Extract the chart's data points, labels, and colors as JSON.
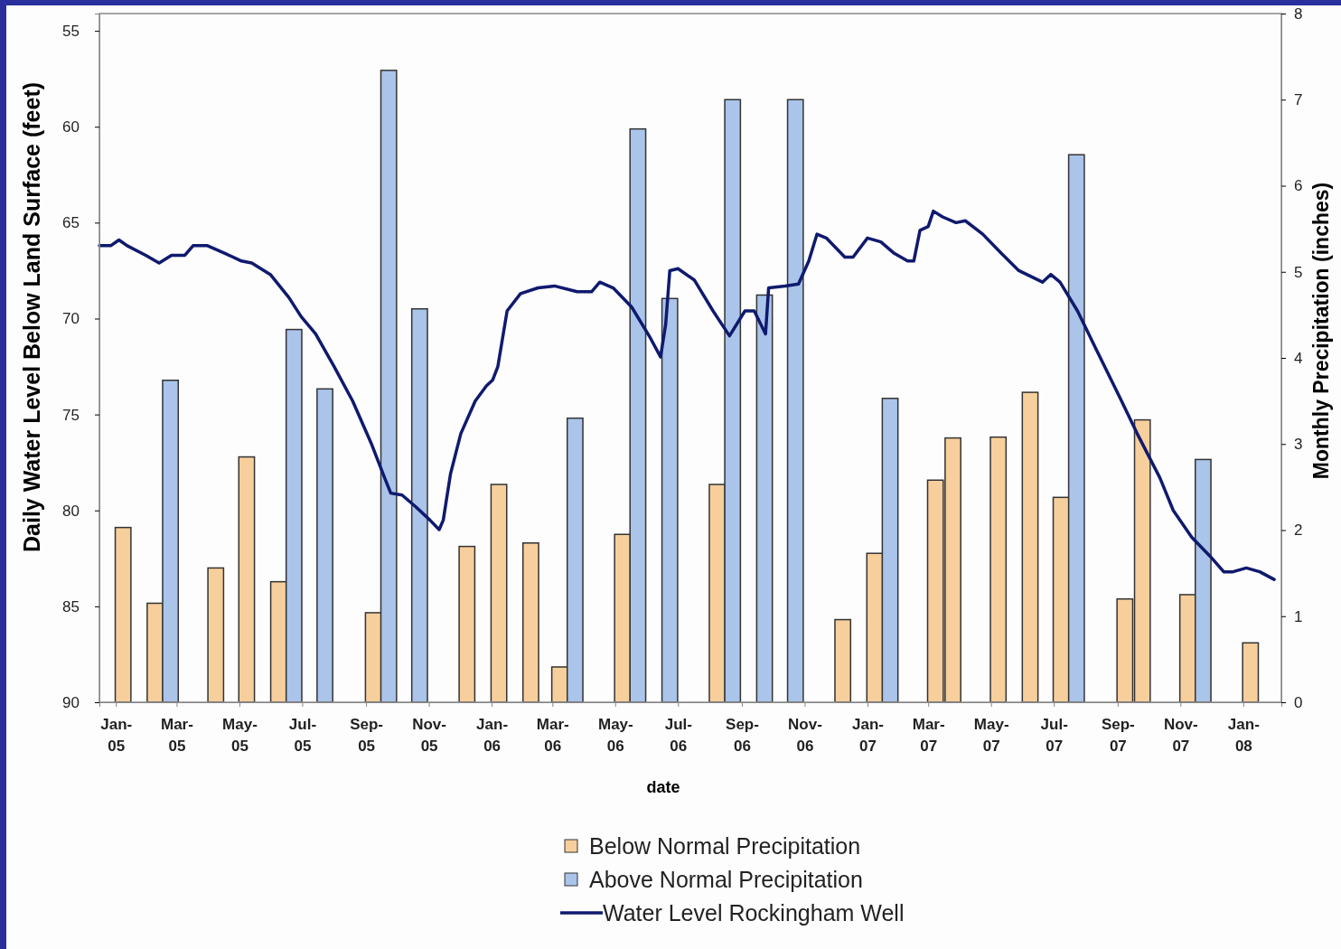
{
  "chart_data": {
    "type": "bar",
    "xlabel": "date",
    "ylabel": "Daily Water Level Below Land Surface (feet)",
    "y2label": "Monthly Precipitation (inches)",
    "xlim": [
      "2004-12-16",
      "2008-02-07"
    ],
    "xticks": [
      {
        "value": "2005-01",
        "label": "Jan-05"
      },
      {
        "value": "2005-03",
        "label": "Mar-05"
      },
      {
        "value": "2005-05",
        "label": "May-05"
      },
      {
        "value": "2005-07",
        "label": "Jul-05"
      },
      {
        "value": "2005-09",
        "label": "Sep-05"
      },
      {
        "value": "2005-11",
        "label": "Nov-05"
      },
      {
        "value": "2006-01",
        "label": "Jan-06"
      },
      {
        "value": "2006-03",
        "label": "Mar-06"
      },
      {
        "value": "2006-05",
        "label": "May-06"
      },
      {
        "value": "2006-07",
        "label": "Jul-06"
      },
      {
        "value": "2006-09",
        "label": "Sep-06"
      },
      {
        "value": "2006-11",
        "label": "Nov-06"
      },
      {
        "value": "2007-01",
        "label": "Jan-07"
      },
      {
        "value": "2007-03",
        "label": "Mar-07"
      },
      {
        "value": "2007-05",
        "label": "May-07"
      },
      {
        "value": "2007-07",
        "label": "Jul-07"
      },
      {
        "value": "2007-09",
        "label": "Sep-07"
      },
      {
        "value": "2007-11",
        "label": "Nov-07"
      },
      {
        "value": "2008-01",
        "label": "Jan-08"
      }
    ],
    "ylim": [
      90,
      54.1
    ],
    "yticks": [
      55,
      60,
      65,
      70,
      75,
      80,
      85,
      90
    ],
    "y2lim": [
      0,
      8
    ],
    "y2ticks": [
      0,
      1,
      2,
      3,
      4,
      5,
      6,
      7,
      8
    ],
    "legend": "bottom",
    "grid": false,
    "series": [
      {
        "name": "Below Normal Precipitation",
        "axis": "y2",
        "color": "#f7cf9c",
        "x": [
          "2005-01-08",
          "2005-02-08",
          "2005-04-08",
          "2005-05-08",
          "2005-06-08",
          "2005-09-08",
          "2005-12-08",
          "2006-01-08",
          "2006-02-08",
          "2006-03-08",
          "2006-05-08",
          "2006-08-08",
          "2006-12-08",
          "2007-01-08",
          "2007-03-08",
          "2007-03-25",
          "2007-05-08",
          "2007-06-08",
          "2007-07-08",
          "2007-09-08",
          "2007-09-25",
          "2007-11-08",
          "2008-01-08"
        ],
        "values": [
          2.03,
          1.15,
          1.56,
          2.85,
          1.4,
          1.04,
          1.81,
          2.53,
          1.85,
          0.41,
          1.95,
          2.53,
          0.96,
          1.73,
          2.58,
          3.07,
          3.08,
          3.6,
          2.38,
          1.2,
          3.28,
          1.25,
          0.69
        ]
      },
      {
        "name": "Above Normal Precipitation",
        "axis": "y2",
        "color": "#aac4ea",
        "x": [
          "2005-02-23",
          "2005-06-23",
          "2005-07-23",
          "2005-09-23",
          "2005-10-23",
          "2006-03-23",
          "2006-05-23",
          "2006-06-23",
          "2006-08-23",
          "2006-09-23",
          "2006-10-23",
          "2007-01-23",
          "2007-07-23",
          "2007-11-23"
        ],
        "values": [
          3.74,
          4.33,
          3.64,
          7.34,
          4.57,
          3.3,
          6.66,
          4.69,
          7.0,
          4.73,
          7.0,
          3.53,
          6.36,
          2.82
        ]
      },
      {
        "name": "Water Level Rockingham Well",
        "type": "line",
        "axis": "y",
        "color": "#0f1a6e",
        "x": [
          "2004-12-16",
          "2004-12-27",
          "2005-01-04",
          "2005-01-12",
          "2005-01-30",
          "2005-02-12",
          "2005-02-24",
          "2005-03-09",
          "2005-03-17",
          "2005-03-31",
          "2005-04-17",
          "2005-05-03",
          "2005-05-13",
          "2005-05-31",
          "2005-06-18",
          "2005-06-30",
          "2005-07-14",
          "2005-08-01",
          "2005-08-19",
          "2005-09-06",
          "2005-09-19",
          "2005-09-25",
          "2005-10-06",
          "2005-10-19",
          "2005-11-02",
          "2005-11-11",
          "2005-11-15",
          "2005-11-22",
          "2005-12-02",
          "2005-12-16",
          "2005-12-27",
          "2006-01-02",
          "2006-01-07",
          "2006-01-16",
          "2006-01-29",
          "2006-02-15",
          "2006-03-03",
          "2006-03-25",
          "2006-04-08",
          "2006-04-16",
          "2006-04-29",
          "2006-05-17",
          "2006-06-04",
          "2006-06-14",
          "2006-06-19",
          "2006-06-23",
          "2006-07-01",
          "2006-07-17",
          "2006-08-04",
          "2006-08-20",
          "2006-09-04",
          "2006-09-13",
          "2006-09-24",
          "2006-09-27",
          "2006-10-13",
          "2006-10-26",
          "2006-11-05",
          "2006-11-13",
          "2006-11-22",
          "2006-12-10",
          "2006-12-18",
          "2007-01-01",
          "2007-01-14",
          "2007-01-27",
          "2007-02-09",
          "2007-02-15",
          "2007-02-21",
          "2007-03-01",
          "2007-03-06",
          "2007-03-15",
          "2007-03-28",
          "2007-04-06",
          "2007-04-23",
          "2007-05-11",
          "2007-05-28",
          "2007-06-20",
          "2007-06-28",
          "2007-07-07",
          "2007-07-24",
          "2007-08-12",
          "2007-09-03",
          "2007-09-20",
          "2007-10-12",
          "2007-10-25",
          "2007-11-12",
          "2007-11-30",
          "2007-12-13",
          "2007-12-22",
          "2008-01-04",
          "2008-01-17",
          "2008-01-31"
        ],
        "values": [
          66.2,
          66.2,
          65.9,
          66.2,
          66.7,
          67.1,
          66.7,
          66.7,
          66.2,
          66.2,
          66.6,
          67.0,
          67.1,
          67.7,
          68.9,
          69.9,
          70.8,
          72.5,
          74.3,
          76.5,
          78.3,
          79.1,
          79.2,
          79.8,
          80.5,
          81.0,
          80.5,
          78.1,
          76.0,
          74.3,
          73.5,
          73.2,
          72.5,
          69.6,
          68.7,
          68.4,
          68.3,
          68.6,
          68.6,
          68.1,
          68.4,
          69.4,
          71.0,
          72.0,
          70.3,
          67.5,
          67.4,
          68.0,
          69.6,
          70.9,
          69.6,
          69.6,
          70.8,
          68.4,
          68.3,
          68.2,
          67.0,
          65.6,
          65.8,
          66.8,
          66.8,
          65.8,
          66.0,
          66.6,
          67.0,
          67.0,
          65.4,
          65.2,
          64.4,
          64.7,
          65.0,
          64.9,
          65.6,
          66.6,
          67.5,
          68.1,
          67.7,
          68.1,
          69.6,
          71.7,
          74.1,
          76.0,
          78.3,
          80.0,
          81.4,
          82.4,
          83.2,
          83.2,
          83.0,
          83.2,
          83.6
        ]
      }
    ]
  }
}
